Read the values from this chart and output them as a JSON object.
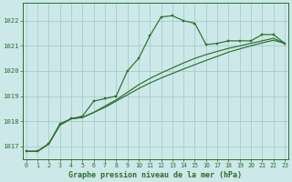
{
  "title": "Graphe pression niveau de la mer (hPa)",
  "background_color": "#cce8e8",
  "grid_color": "#aacccc",
  "line_color": "#2d6e2d",
  "x_ticks": [
    0,
    1,
    2,
    3,
    4,
    5,
    6,
    7,
    8,
    9,
    10,
    11,
    12,
    13,
    14,
    15,
    16,
    17,
    18,
    19,
    20,
    21,
    22,
    23
  ],
  "y_ticks": [
    1017,
    1018,
    1019,
    1020,
    1021,
    1022
  ],
  "ylim": [
    1016.5,
    1022.7
  ],
  "xlim": [
    -0.3,
    23.3
  ],
  "series_main": [
    1016.8,
    1016.8,
    1017.1,
    1017.9,
    1018.1,
    1018.2,
    1018.8,
    1018.9,
    1019.0,
    1020.0,
    1020.5,
    1021.4,
    1022.15,
    1022.2,
    1022.0,
    1021.9,
    1021.05,
    1021.1,
    1021.2,
    1021.2,
    1021.2,
    1021.45,
    1021.45,
    1021.1
  ],
  "series_smooth1": [
    1016.8,
    1016.8,
    1017.1,
    1017.85,
    1018.1,
    1018.15,
    1018.35,
    1018.6,
    1018.85,
    1019.15,
    1019.45,
    1019.7,
    1019.92,
    1020.12,
    1020.32,
    1020.5,
    1020.65,
    1020.78,
    1020.9,
    1021.0,
    1021.1,
    1021.2,
    1021.3,
    1021.1
  ],
  "series_smooth2": [
    1016.8,
    1016.8,
    1017.1,
    1017.85,
    1018.1,
    1018.15,
    1018.35,
    1018.55,
    1018.8,
    1019.05,
    1019.3,
    1019.52,
    1019.72,
    1019.9,
    1020.08,
    1020.25,
    1020.42,
    1020.58,
    1020.75,
    1020.88,
    1021.0,
    1021.12,
    1021.22,
    1021.1
  ]
}
